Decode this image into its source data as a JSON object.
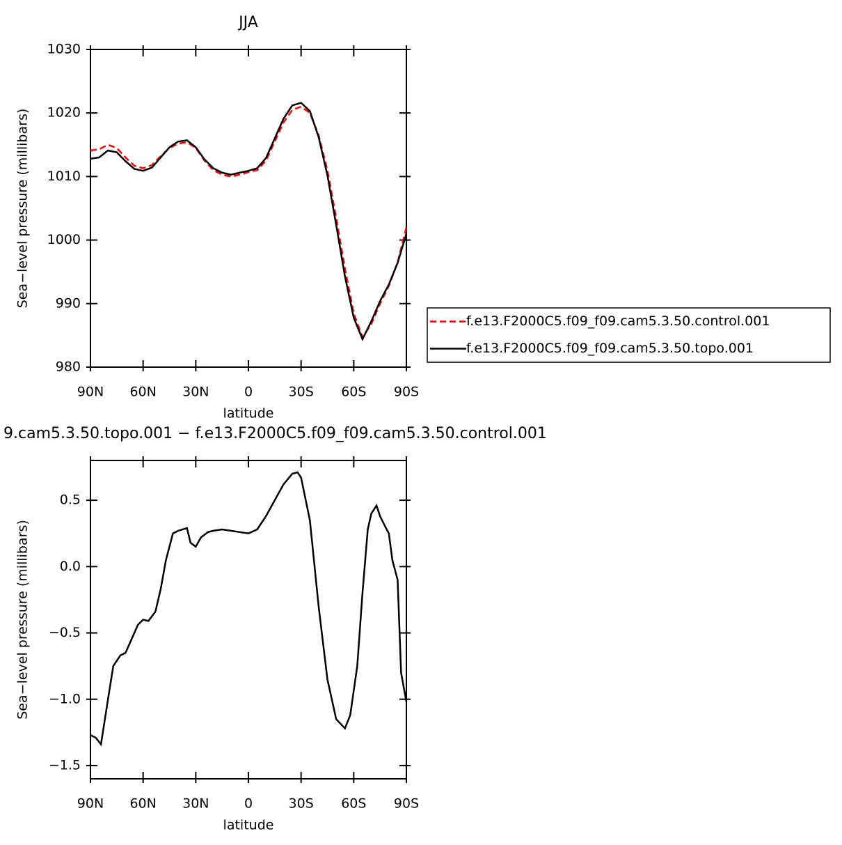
{
  "chart_data": [
    {
      "type": "line",
      "title": "JJA",
      "xlabel": "latitude",
      "ylabel": "Sea−level pressure (millibars)",
      "x": [
        90,
        85,
        80,
        75,
        70,
        65,
        60,
        55,
        50,
        45,
        40,
        35,
        30,
        25,
        20,
        15,
        10,
        5,
        0,
        -5,
        -10,
        -15,
        -20,
        -25,
        -30,
        -35,
        -40,
        -45,
        -50,
        -55,
        -60,
        -65,
        -70,
        -75,
        -80,
        -85,
        -90
      ],
      "series": [
        {
          "name": "f.e13.F2000C5.f09_f09.cam5.3.50.control.001",
          "color": "#ff0000",
          "style": "dashed",
          "values": [
            1014.1,
            1014.3,
            1015,
            1014.5,
            1013,
            1011.7,
            1011.3,
            1011.8,
            1013.2,
            1014.5,
            1015.2,
            1015.4,
            1014.5,
            1012.5,
            1011,
            1010.3,
            1010,
            1010.3,
            1010.7,
            1011,
            1012.5,
            1015.5,
            1018.5,
            1020.5,
            1021,
            1020,
            1016.5,
            1011,
            1003.5,
            995.5,
            988.5,
            984.7,
            986.8,
            990,
            992.8,
            996.5,
            1002
          ]
        },
        {
          "name": "f.e13.F2000C5.f09_f09.cam5.3.50.topo.001",
          "color": "#000000",
          "style": "solid",
          "values": [
            1012.8,
            1013,
            1014.1,
            1013.8,
            1012.4,
            1011.2,
            1010.9,
            1011.4,
            1013,
            1014.6,
            1015.5,
            1015.7,
            1014.6,
            1012.7,
            1011.3,
            1010.6,
            1010.3,
            1010.6,
            1010.9,
            1011.3,
            1012.9,
            1016,
            1019.1,
            1021.2,
            1021.6,
            1020.3,
            1016.2,
            1010.2,
            1002.4,
            994.3,
            987.8,
            984.4,
            987.2,
            990.4,
            993,
            996.4,
            1001
          ]
        }
      ],
      "xlim": [
        90,
        -90
      ],
      "xticks": [
        {
          "value": 90,
          "label": "90N"
        },
        {
          "value": 60,
          "label": "60N"
        },
        {
          "value": 30,
          "label": "30N"
        },
        0,
        {
          "value": -30,
          "label": "30S"
        },
        {
          "value": -60,
          "label": "60S"
        },
        {
          "value": -90,
          "label": "90S"
        }
      ],
      "ylim": [
        980,
        1030
      ],
      "yticks": [
        980,
        990,
        1000,
        1010,
        1020,
        1030
      ],
      "legend": "right"
    },
    {
      "type": "line",
      "title": "9.cam5.3.50.topo.001 − f.e13.F2000C5.f09_f09.cam5.3.50.control.001",
      "xlabel": "latitude",
      "ylabel": "Sea−level pressure (millibars)",
      "x": [
        90,
        87,
        84,
        80,
        77,
        73,
        70,
        67,
        63,
        60,
        57,
        53,
        50,
        47,
        43,
        40,
        35,
        33,
        30,
        27,
        23,
        20,
        15,
        10,
        5,
        0,
        -5,
        -10,
        -15,
        -20,
        -25,
        -28,
        -30,
        -35,
        -40,
        -45,
        -50,
        -55,
        -58,
        -62,
        -65,
        -68,
        -70,
        -73,
        -75,
        -78,
        -80,
        -82,
        -85,
        -87,
        -90
      ],
      "series": [
        {
          "name": "difference",
          "color": "#000000",
          "style": "solid",
          "values": [
            -1.27,
            -1.29,
            -1.34,
            -1.0,
            -0.75,
            -0.67,
            -0.65,
            -0.56,
            -0.44,
            -0.4,
            -0.41,
            -0.34,
            -0.17,
            0.05,
            0.25,
            0.27,
            0.29,
            0.18,
            0.15,
            0.22,
            0.26,
            0.27,
            0.28,
            0.27,
            0.26,
            0.25,
            0.28,
            0.38,
            0.5,
            0.62,
            0.7,
            0.71,
            0.67,
            0.35,
            -0.3,
            -0.85,
            -1.15,
            -1.22,
            -1.12,
            -0.75,
            -0.2,
            0.28,
            0.4,
            0.46,
            0.38,
            0.3,
            0.25,
            0.05,
            -0.1,
            -0.8,
            -1.02
          ]
        }
      ],
      "xlim": [
        90,
        -90
      ],
      "xticks": [
        {
          "value": 90,
          "label": "90N"
        },
        {
          "value": 60,
          "label": "60N"
        },
        {
          "value": 30,
          "label": "30N"
        },
        0,
        {
          "value": -30,
          "label": "30S"
        },
        {
          "value": -60,
          "label": "60S"
        },
        {
          "value": -90,
          "label": "90S"
        }
      ],
      "ylim": [
        -1.6,
        0.8
      ],
      "yticks": [
        {
          "value": -1.5,
          "label": "−1.5"
        },
        {
          "value": -1.0,
          "label": "−1.0"
        },
        {
          "value": -0.5,
          "label": "−0.5"
        },
        {
          "value": 0,
          "label": "0.0"
        },
        0.5
      ]
    }
  ]
}
